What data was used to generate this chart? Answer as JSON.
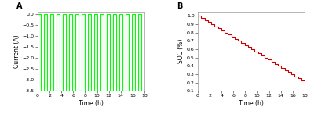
{
  "panel_a": {
    "label": "A",
    "xlabel": "Time (h)",
    "ylabel": "Current (A)",
    "xlim": [
      0,
      18
    ],
    "ylim": [
      -3.5,
      0.1
    ],
    "yticks": [
      0,
      -0.5,
      -1,
      -1.5,
      -2,
      -2.5,
      -3,
      -3.5
    ],
    "xticks": [
      0,
      2,
      4,
      6,
      8,
      10,
      12,
      14,
      16,
      18
    ],
    "color": "#00FF00",
    "linewidth": 0.8,
    "n_cycles": 17,
    "low_val": -3.5,
    "high_val": 0.0,
    "duty": 0.5
  },
  "panel_b": {
    "label": "B",
    "xlabel": "Time (h)",
    "ylabel": "SOC (%)",
    "xlim": [
      0,
      18
    ],
    "ylim": [
      0.1,
      1.05
    ],
    "yticks": [
      0.1,
      0.2,
      0.3,
      0.4,
      0.5,
      0.6,
      0.7,
      0.8,
      0.9,
      1.0
    ],
    "xticks": [
      0,
      2,
      4,
      6,
      8,
      10,
      12,
      14,
      16,
      18
    ],
    "color": "#CC0000",
    "linewidth": 0.8,
    "start_soc": 1.0,
    "end_soc": 0.2,
    "n_steps": 32
  },
  "fig_width": 4.0,
  "fig_height": 1.51,
  "dpi": 100,
  "background_color": "#ffffff",
  "axes_facecolor": "#ffffff",
  "spine_color": "#999999",
  "tick_color": "#555555",
  "label_fontsize": 5.5,
  "tick_fontsize": 4.5
}
